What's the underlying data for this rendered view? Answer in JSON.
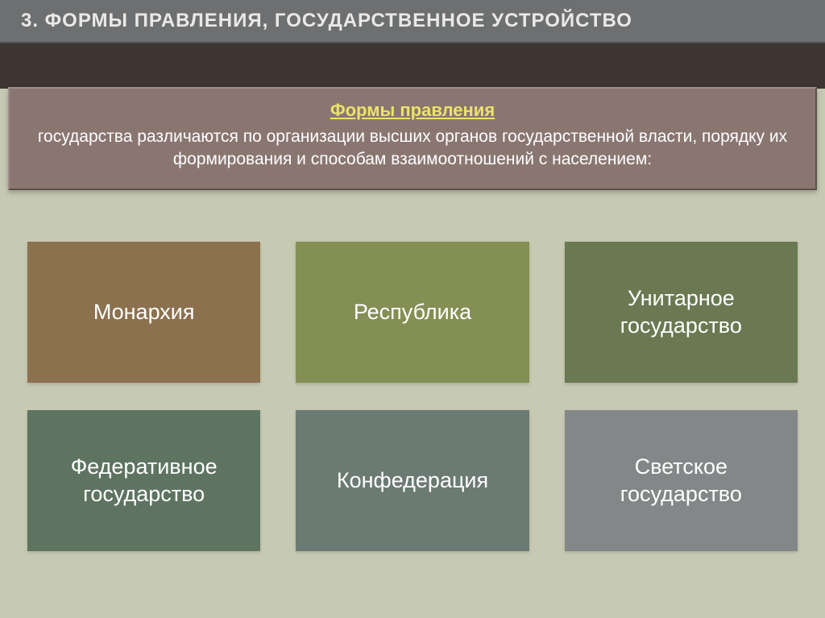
{
  "title": "3. Формы правления, государственное устройство",
  "description": {
    "heading": "Формы правления",
    "body": "государства различаются по организации высших органов государственной власти, порядку их формирования и способам взаимоотношений с населением:"
  },
  "grid": {
    "type": "infographic",
    "columns": 3,
    "rows": 2,
    "cell_fontsize": 27,
    "cells": [
      {
        "label": "Монархия",
        "bg": "#8c714f"
      },
      {
        "label": "Республика",
        "bg": "#848f54"
      },
      {
        "label": "Унитарное государство",
        "bg": "#6a7952"
      },
      {
        "label": "Федеративное государство",
        "bg": "#5e7461"
      },
      {
        "label": "Конфедерация",
        "bg": "#6b7a72"
      },
      {
        "label": "Светское государство",
        "bg": "#838788"
      }
    ]
  },
  "colors": {
    "slide_bg": "#c7cab3",
    "title_bar_bg": "#6d6f70",
    "title_text": "#e9e9e7",
    "dark_band_bg": "#3f3530",
    "desc_panel_bg": "#8a7671",
    "desc_heading": "#ece36a",
    "desc_text": "#ffffff"
  },
  "typography": {
    "title_fontsize": 24,
    "desc_heading_fontsize": 22,
    "desc_body_fontsize": 21
  }
}
